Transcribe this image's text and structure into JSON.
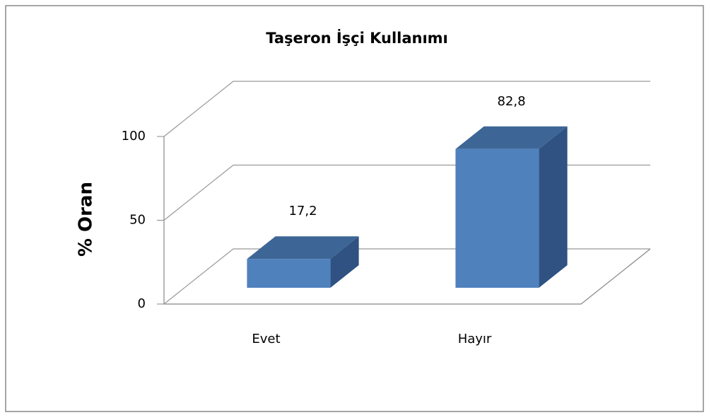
{
  "chart_data": {
    "type": "bar3d",
    "title": "Taşeron İşçi Kullanımı",
    "y_label": "% Oran",
    "categories": [
      "Evet",
      "Hayır"
    ],
    "values": [
      17.2,
      82.8
    ],
    "value_labels": [
      "17,2",
      "82,8"
    ],
    "color": "#4f81bd",
    "ylim": [
      0,
      100
    ],
    "yticks": [
      0,
      50,
      100
    ],
    "grid": true
  }
}
